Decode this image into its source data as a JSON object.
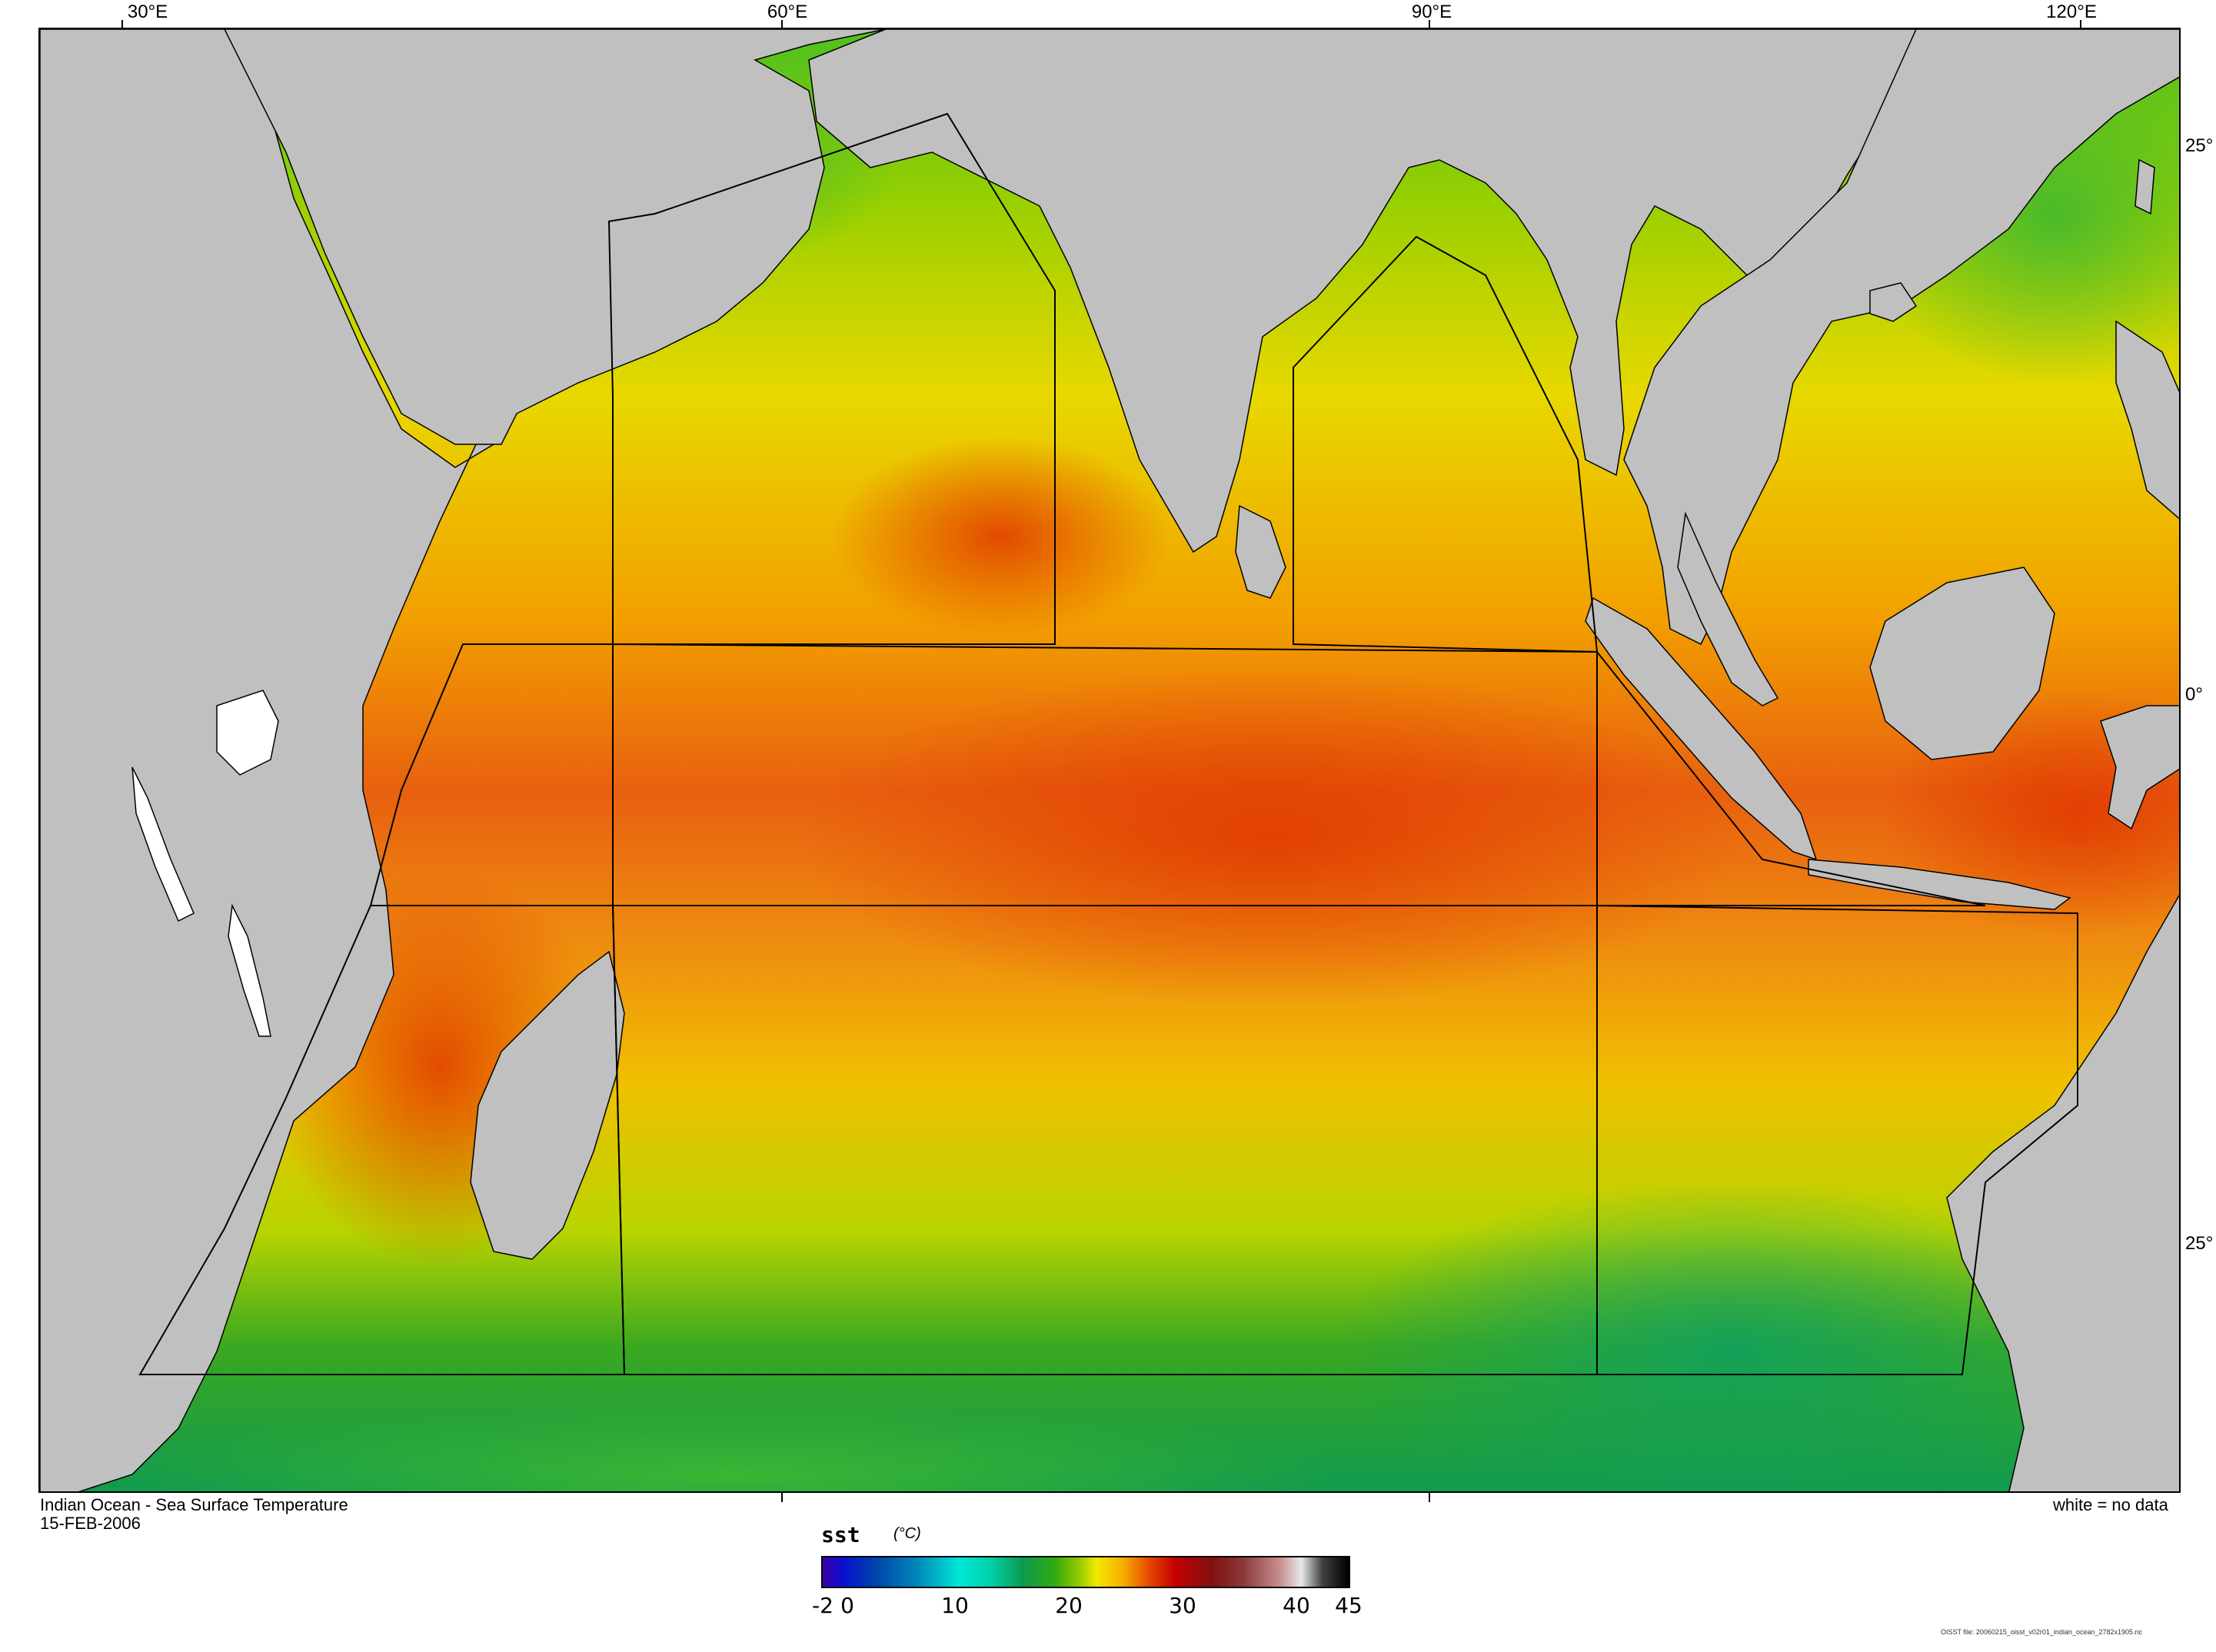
{
  "map": {
    "title": "Indian Ocean - Sea Surface Temperature",
    "date": "15-FEB-2006",
    "legend_note": "white = no data",
    "footnote": "OISST file: 20060215_oisst_v02r01_indian_ocean_2782x1905.nc",
    "lon_labels": [
      "30°E",
      "60°E",
      "90°E",
      "120°E"
    ],
    "lat_labels": [
      "25°",
      "0°",
      "25°"
    ],
    "colors": {
      "land": "#c0c0c0",
      "no_data": "#ffffff",
      "region_outline": "#000000"
    }
  },
  "colorbar": {
    "variable": "sst",
    "unit": "(°C)",
    "tick_labels": [
      "-2",
      "0",
      "10",
      "20",
      "30",
      "40",
      "45"
    ],
    "range": [
      -2,
      45
    ]
  }
}
